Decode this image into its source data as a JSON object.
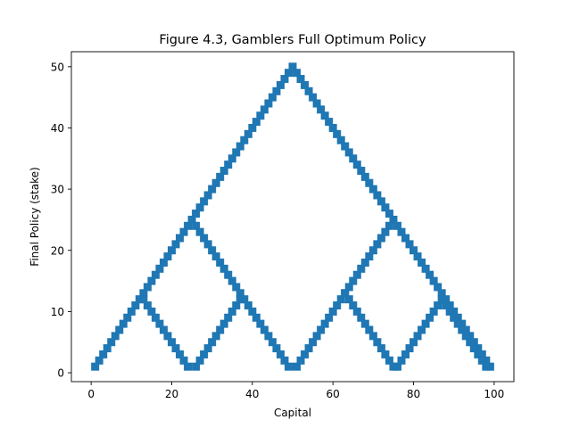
{
  "chart_data": {
    "type": "scatter",
    "title": "Figure 4.3, Gamblers Full Optimum Policy",
    "xlabel": "Capital",
    "ylabel": "Final Policy (stake)",
    "xlim": [
      -4.9,
      104.9
    ],
    "ylim": [
      -1.45,
      52.45
    ],
    "xticks": [
      0,
      20,
      40,
      60,
      80,
      100
    ],
    "yticks": [
      0,
      10,
      20,
      30,
      40,
      50
    ],
    "grid": false,
    "marker": "square",
    "color": "#1f77b4",
    "series": [
      {
        "points": [
          [
            1,
            1
          ],
          [
            2,
            2
          ],
          [
            3,
            3
          ],
          [
            4,
            4
          ],
          [
            5,
            5
          ],
          [
            6,
            6
          ],
          [
            7,
            7
          ],
          [
            8,
            8
          ],
          [
            9,
            9
          ],
          [
            10,
            10
          ],
          [
            11,
            11
          ],
          [
            12,
            12
          ],
          [
            13,
            13
          ],
          [
            14,
            14
          ],
          [
            15,
            15
          ],
          [
            16,
            16
          ],
          [
            17,
            17
          ],
          [
            18,
            18
          ],
          [
            19,
            19
          ],
          [
            20,
            20
          ],
          [
            21,
            21
          ],
          [
            22,
            22
          ],
          [
            23,
            23
          ],
          [
            24,
            24
          ],
          [
            25,
            25
          ],
          [
            26,
            24
          ],
          [
            27,
            23
          ],
          [
            28,
            22
          ],
          [
            29,
            21
          ],
          [
            30,
            20
          ],
          [
            31,
            19
          ],
          [
            32,
            18
          ],
          [
            33,
            17
          ],
          [
            34,
            16
          ],
          [
            35,
            15
          ],
          [
            36,
            14
          ],
          [
            37,
            13
          ],
          [
            38,
            12
          ],
          [
            39,
            11
          ],
          [
            40,
            10
          ],
          [
            41,
            9
          ],
          [
            42,
            8
          ],
          [
            43,
            7
          ],
          [
            44,
            6
          ],
          [
            45,
            5
          ],
          [
            46,
            4
          ],
          [
            47,
            3
          ],
          [
            48,
            2
          ],
          [
            49,
            1
          ],
          [
            26,
            1
          ],
          [
            27,
            2
          ],
          [
            28,
            3
          ],
          [
            29,
            4
          ],
          [
            30,
            5
          ],
          [
            31,
            6
          ],
          [
            32,
            7
          ],
          [
            33,
            8
          ],
          [
            34,
            9
          ],
          [
            35,
            10
          ],
          [
            36,
            11
          ],
          [
            37,
            12
          ],
          [
            26,
            26
          ],
          [
            27,
            27
          ],
          [
            28,
            28
          ],
          [
            29,
            29
          ],
          [
            30,
            30
          ],
          [
            31,
            31
          ],
          [
            32,
            32
          ],
          [
            33,
            33
          ],
          [
            34,
            34
          ],
          [
            35,
            35
          ],
          [
            36,
            36
          ],
          [
            37,
            37
          ],
          [
            38,
            38
          ],
          [
            39,
            39
          ],
          [
            40,
            40
          ],
          [
            41,
            41
          ],
          [
            42,
            42
          ],
          [
            43,
            43
          ],
          [
            44,
            44
          ],
          [
            45,
            45
          ],
          [
            46,
            46
          ],
          [
            47,
            47
          ],
          [
            48,
            48
          ],
          [
            49,
            49
          ],
          [
            50,
            50
          ],
          [
            51,
            49
          ],
          [
            52,
            48
          ],
          [
            53,
            47
          ],
          [
            54,
            46
          ],
          [
            55,
            45
          ],
          [
            56,
            44
          ],
          [
            57,
            43
          ],
          [
            58,
            42
          ],
          [
            59,
            41
          ],
          [
            60,
            40
          ],
          [
            61,
            39
          ],
          [
            62,
            38
          ],
          [
            63,
            37
          ],
          [
            64,
            36
          ],
          [
            65,
            35
          ],
          [
            66,
            34
          ],
          [
            67,
            33
          ],
          [
            68,
            32
          ],
          [
            69,
            31
          ],
          [
            70,
            30
          ],
          [
            71,
            29
          ],
          [
            72,
            28
          ],
          [
            73,
            27
          ],
          [
            74,
            26
          ],
          [
            75,
            25
          ],
          [
            76,
            24
          ],
          [
            77,
            23
          ],
          [
            78,
            22
          ],
          [
            79,
            21
          ],
          [
            80,
            20
          ],
          [
            81,
            19
          ],
          [
            82,
            18
          ],
          [
            83,
            17
          ],
          [
            84,
            16
          ],
          [
            85,
            15
          ],
          [
            86,
            14
          ],
          [
            87,
            13
          ],
          [
            88,
            12
          ],
          [
            89,
            11
          ],
          [
            90,
            10
          ],
          [
            91,
            9
          ],
          [
            92,
            8
          ],
          [
            93,
            7
          ],
          [
            94,
            6
          ],
          [
            95,
            5
          ],
          [
            96,
            4
          ],
          [
            97,
            3
          ],
          [
            98,
            2
          ],
          [
            99,
            1
          ],
          [
            51,
            1
          ],
          [
            52,
            2
          ],
          [
            53,
            3
          ],
          [
            54,
            4
          ],
          [
            55,
            5
          ],
          [
            56,
            6
          ],
          [
            57,
            7
          ],
          [
            58,
            8
          ],
          [
            59,
            9
          ],
          [
            60,
            10
          ],
          [
            61,
            11
          ],
          [
            62,
            12
          ],
          [
            63,
            13
          ],
          [
            64,
            12
          ],
          [
            65,
            11
          ],
          [
            66,
            10
          ],
          [
            67,
            9
          ],
          [
            68,
            8
          ],
          [
            69,
            7
          ],
          [
            70,
            6
          ],
          [
            71,
            5
          ],
          [
            72,
            4
          ],
          [
            73,
            3
          ],
          [
            74,
            2
          ],
          [
            75,
            1
          ],
          [
            63,
            13
          ],
          [
            64,
            14
          ],
          [
            65,
            15
          ],
          [
            66,
            16
          ],
          [
            67,
            17
          ],
          [
            68,
            18
          ],
          [
            69,
            19
          ],
          [
            70,
            20
          ],
          [
            71,
            21
          ],
          [
            72,
            22
          ],
          [
            73,
            23
          ],
          [
            74,
            24
          ],
          [
            76,
            1
          ],
          [
            77,
            2
          ],
          [
            78,
            3
          ],
          [
            79,
            4
          ],
          [
            80,
            5
          ],
          [
            81,
            6
          ],
          [
            82,
            7
          ],
          [
            83,
            8
          ],
          [
            84,
            9
          ],
          [
            85,
            10
          ],
          [
            86,
            11
          ],
          [
            87,
            12
          ],
          [
            13,
            12
          ],
          [
            14,
            11
          ],
          [
            15,
            10
          ],
          [
            16,
            9
          ],
          [
            17,
            8
          ],
          [
            18,
            7
          ],
          [
            19,
            6
          ],
          [
            20,
            5
          ],
          [
            21,
            4
          ],
          [
            22,
            3
          ],
          [
            23,
            2
          ],
          [
            24,
            1
          ],
          [
            88,
            11
          ],
          [
            89,
            10
          ],
          [
            90,
            9
          ],
          [
            91,
            8
          ],
          [
            92,
            7
          ],
          [
            93,
            6
          ],
          [
            94,
            5
          ],
          [
            95,
            4
          ],
          [
            96,
            3
          ],
          [
            97,
            2
          ],
          [
            98,
            1
          ]
        ]
      }
    ]
  }
}
